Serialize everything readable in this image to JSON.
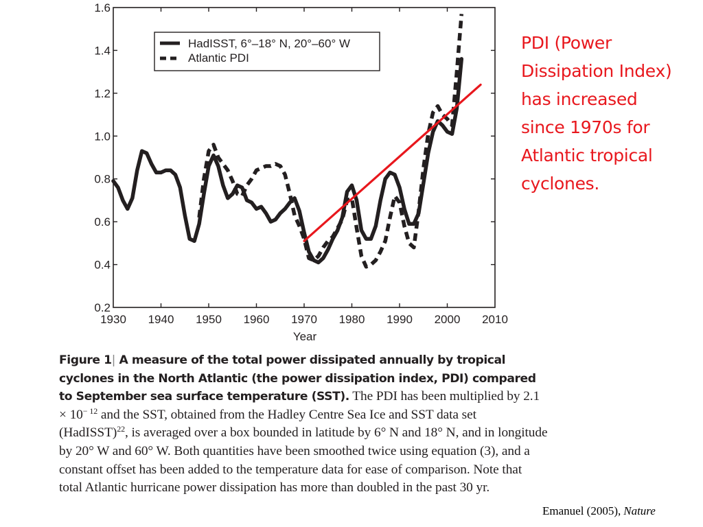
{
  "chart_data": {
    "type": "line",
    "title": "",
    "xlabel": "Year",
    "ylabel": "",
    "xlim": [
      1930,
      2010
    ],
    "ylim": [
      0.2,
      1.6
    ],
    "x_ticks": [
      "1930",
      "1940",
      "1950",
      "1960",
      "1970",
      "1980",
      "1990",
      "2000",
      "2010"
    ],
    "y_ticks": [
      "0.2",
      "0.4",
      "0.6",
      "0.8",
      "1.0",
      "1.2",
      "1.4",
      "1.6"
    ],
    "grid": false,
    "legend_position": "top-left (inside)",
    "series": [
      {
        "name": "HadISST, 6°–18° N, 20°–60° W",
        "style": "solid",
        "color": "#231f20",
        "x": [
          1930,
          1931,
          1932,
          1933,
          1934,
          1935,
          1936,
          1937,
          1938,
          1939,
          1940,
          1941,
          1942,
          1943,
          1944,
          1945,
          1946,
          1947,
          1948,
          1949,
          1950,
          1951,
          1952,
          1953,
          1954,
          1955,
          1956,
          1957,
          1958,
          1959,
          1960,
          1961,
          1962,
          1963,
          1964,
          1965,
          1966,
          1967,
          1968,
          1969,
          1970,
          1971,
          1972,
          1973,
          1974,
          1975,
          1976,
          1977,
          1978,
          1979,
          1980,
          1981,
          1982,
          1983,
          1984,
          1985,
          1986,
          1987,
          1988,
          1989,
          1990,
          1991,
          1992,
          1993,
          1994,
          1995,
          1996,
          1997,
          1998,
          1999,
          2000,
          2001,
          2002,
          2003
        ],
        "values": [
          0.79,
          0.76,
          0.7,
          0.66,
          0.71,
          0.84,
          0.93,
          0.92,
          0.87,
          0.83,
          0.83,
          0.84,
          0.84,
          0.82,
          0.76,
          0.63,
          0.52,
          0.51,
          0.59,
          0.73,
          0.86,
          0.91,
          0.86,
          0.77,
          0.71,
          0.73,
          0.77,
          0.76,
          0.7,
          0.69,
          0.66,
          0.67,
          0.64,
          0.6,
          0.61,
          0.64,
          0.66,
          0.69,
          0.71,
          0.65,
          0.55,
          0.46,
          0.42,
          0.41,
          0.43,
          0.47,
          0.52,
          0.56,
          0.62,
          0.74,
          0.77,
          0.7,
          0.56,
          0.52,
          0.52,
          0.58,
          0.7,
          0.8,
          0.83,
          0.82,
          0.76,
          0.66,
          0.59,
          0.59,
          0.64,
          0.78,
          0.92,
          1.02,
          1.07,
          1.05,
          1.02,
          1.01,
          1.13,
          1.36
        ]
      },
      {
        "name": "Atlantic PDI",
        "style": "dashed",
        "color": "#231f20",
        "x": [
          1948,
          1949,
          1950,
          1951,
          1952,
          1953,
          1954,
          1955,
          1956,
          1957,
          1958,
          1959,
          1960,
          1961,
          1962,
          1963,
          1964,
          1965,
          1966,
          1967,
          1968,
          1969,
          1970,
          1971,
          1972,
          1973,
          1974,
          1975,
          1976,
          1977,
          1978,
          1979,
          1980,
          1981,
          1982,
          1983,
          1984,
          1985,
          1986,
          1987,
          1988,
          1989,
          1990,
          1991,
          1992,
          1993,
          1994,
          1995,
          1996,
          1997,
          1998,
          1999,
          2000,
          2001,
          2002,
          2003
        ],
        "values": [
          0.62,
          0.8,
          0.93,
          0.96,
          0.9,
          0.87,
          0.84,
          0.79,
          0.73,
          0.72,
          0.77,
          0.8,
          0.84,
          0.85,
          0.86,
          0.86,
          0.87,
          0.86,
          0.82,
          0.73,
          0.63,
          0.58,
          0.52,
          0.43,
          0.42,
          0.44,
          0.48,
          0.51,
          0.53,
          0.57,
          0.61,
          0.7,
          0.71,
          0.57,
          0.44,
          0.39,
          0.4,
          0.42,
          0.46,
          0.51,
          0.62,
          0.72,
          0.69,
          0.58,
          0.5,
          0.48,
          0.65,
          0.85,
          1.01,
          1.11,
          1.14,
          1.1,
          1.08,
          1.05,
          1.3,
          1.57
        ]
      },
      {
        "name": "Trend line (annotation)",
        "style": "solid",
        "color": "#e8171d",
        "x": [
          1970,
          2007
        ],
        "values": [
          0.51,
          1.24
        ]
      }
    ]
  },
  "legend": {
    "items": [
      {
        "label": "HadISST, 6°–18° N, 20°–60° W",
        "style": "solid"
      },
      {
        "label": "Atlantic PDI",
        "style": "dashed"
      }
    ]
  },
  "annotation": {
    "text": "PDI (Power\nDissipation Index)\n has increased\nsince 1970s for\nAtlantic tropical\ncyclones.",
    "color": "#e8171d"
  },
  "caption": {
    "figure_label": "Figure 1",
    "separator": "|",
    "bold_title": " A measure of the total power dissipated annually by tropical cyclones in the North Atlantic (the power dissipation index, PDI) compared to September sea surface temperature (SST).",
    "body_1": "  The PDI has been multiplied by 2.1 × 10",
    "exponent_1": "− 12",
    "body_2": " and the SST, obtained from the Hadley Centre Sea Ice and SST data set (HadISST)",
    "ref_superscript": "22",
    "body_3": ", is averaged over a box bounded in latitude by 6° N and 18° N, and in longitude by 20° W and 60° W. Both quantities have been smoothed twice using equation (3), and a constant offset has been added to the temperature data for ease of comparison. Note that total Atlantic hurricane power dissipation has more than doubled in the past 30 yr."
  },
  "citation": {
    "author_year": "Emanuel (2005),",
    "journal": "Nature"
  }
}
